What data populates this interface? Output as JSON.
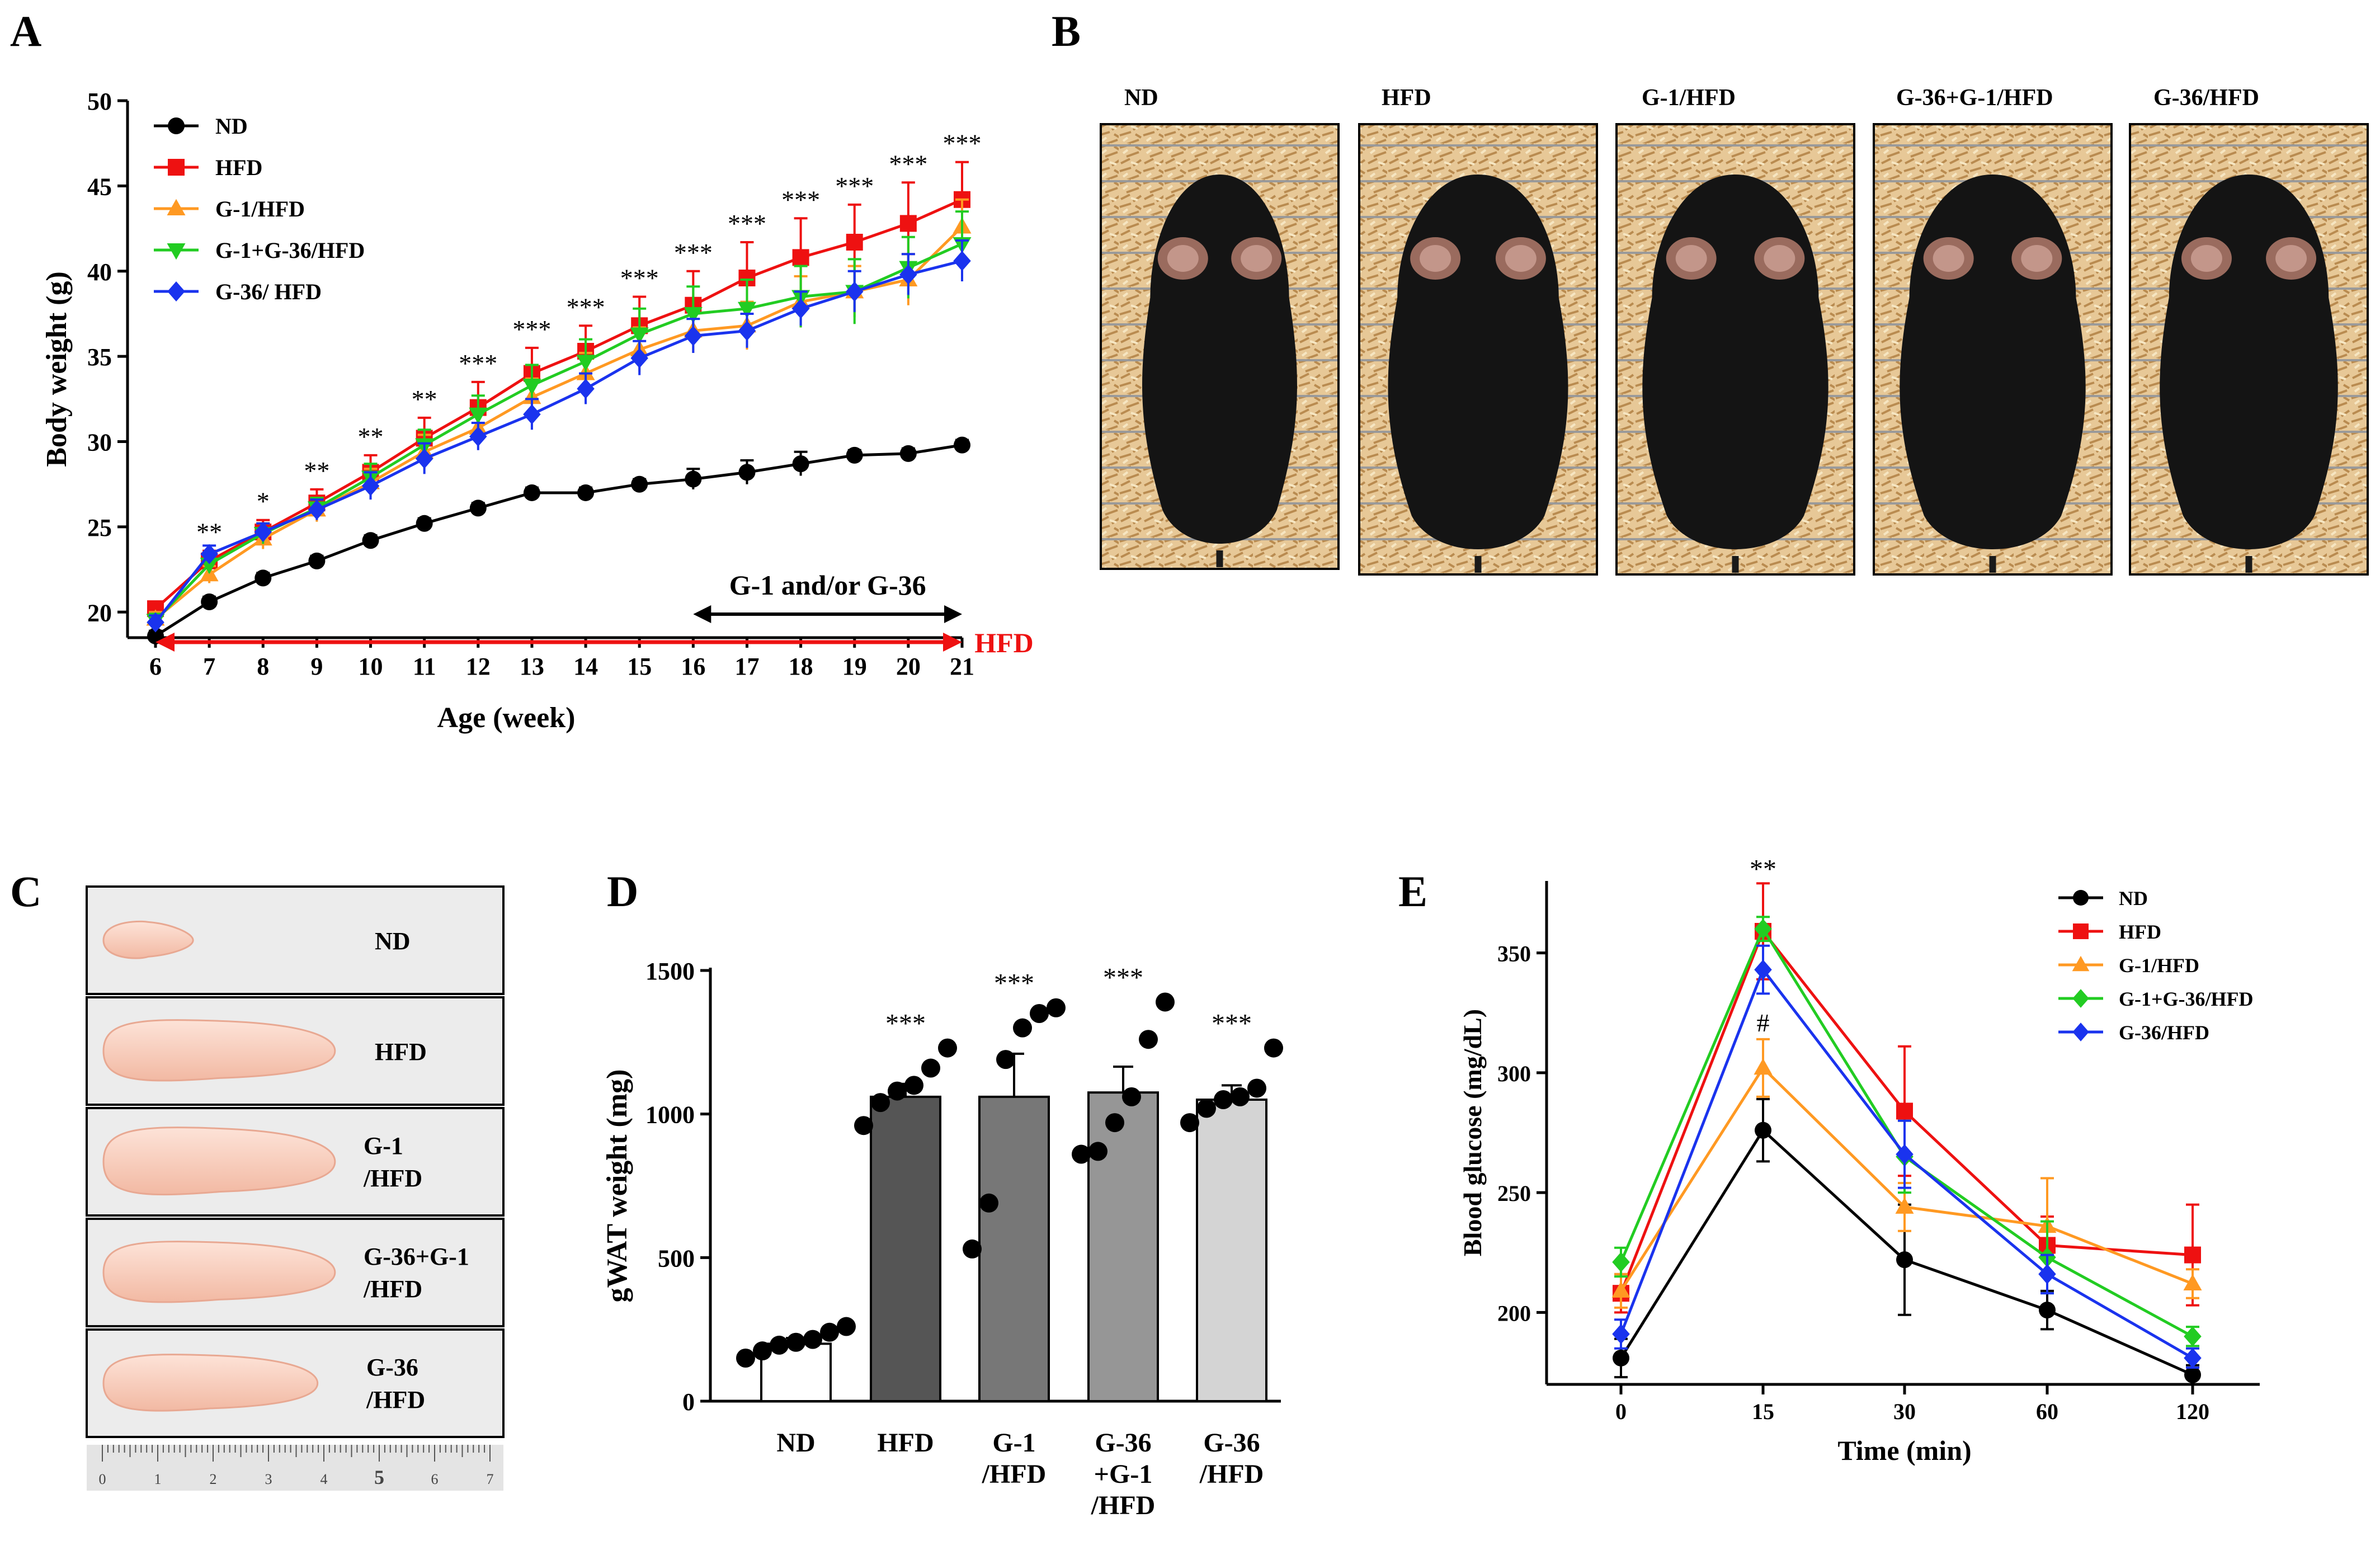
{
  "panels": {
    "A": "A",
    "B": "B",
    "C": "C",
    "D": "D",
    "E": "E"
  },
  "colors": {
    "ND": "#000000",
    "HFD": "#ee1111",
    "G1": "#ff9922",
    "G1G36": "#22cc22",
    "G36": "#1a33ee",
    "barND": "#ffffff",
    "barHFD": "#555555",
    "barG1": "#777777",
    "barG36G1": "#969696",
    "barG36": "#d4d4d4"
  },
  "panelB": {
    "labels": [
      "ND",
      "HFD",
      "G-1/HFD",
      "G-36+G-1/HFD",
      "G-36/HFD"
    ]
  },
  "panelC": {
    "labels": [
      [
        "ND"
      ],
      [
        "HFD"
      ],
      [
        "G-1",
        "/HFD"
      ],
      [
        "G-36+G-1",
        "/HFD"
      ],
      [
        "G-36",
        "/HFD"
      ]
    ],
    "ruler": [
      "0",
      "1",
      "2",
      "3",
      "4",
      "5",
      "6",
      "7"
    ]
  },
  "chart_data": [
    {
      "panel": "A",
      "type": "line",
      "xlabel": "Age (week)",
      "ylabel": "Body weight (g)",
      "xlim": [
        6,
        21
      ],
      "ylim": [
        18.5,
        50
      ],
      "yticks": [
        20,
        25,
        30,
        35,
        40,
        45,
        50
      ],
      "x": [
        6,
        7,
        8,
        9,
        10,
        11,
        12,
        13,
        14,
        15,
        16,
        17,
        18,
        19,
        20,
        21
      ],
      "legend_position": "top-left",
      "series": [
        {
          "name": "ND",
          "color": "#000000",
          "marker": "circle",
          "values": [
            18.6,
            20.6,
            22.0,
            23.0,
            24.2,
            25.2,
            26.1,
            27.0,
            27.0,
            27.5,
            27.8,
            28.2,
            28.7,
            29.2,
            29.3,
            29.8
          ],
          "err": [
            0.3,
            0.3,
            0.3,
            0.3,
            0.3,
            0.3,
            0.3,
            0.3,
            0.3,
            0.3,
            0.6,
            0.7,
            0.7,
            0.3,
            0.3,
            0.3
          ]
        },
        {
          "name": "HFD",
          "color": "#ee1111",
          "marker": "square",
          "values": [
            20.2,
            23.0,
            24.7,
            26.4,
            28.2,
            30.2,
            32.0,
            34.0,
            35.3,
            36.8,
            38.0,
            39.6,
            40.8,
            41.7,
            42.8,
            44.2
          ],
          "err": [
            0.4,
            0.6,
            0.7,
            0.8,
            1.0,
            1.2,
            1.5,
            1.5,
            1.5,
            1.7,
            2.0,
            2.1,
            2.3,
            2.2,
            2.4,
            2.2
          ]
        },
        {
          "name": "G-1/HFD",
          "color": "#ff9922",
          "marker": "triangle-up",
          "values": [
            19.6,
            22.2,
            24.3,
            26.0,
            27.6,
            29.4,
            30.8,
            32.6,
            34.0,
            35.4,
            36.5,
            36.8,
            38.2,
            38.8,
            39.5,
            42.6
          ],
          "err": [
            0.4,
            0.5,
            0.6,
            0.7,
            0.8,
            1.0,
            1.0,
            1.1,
            1.2,
            1.3,
            1.3,
            1.4,
            1.5,
            1.5,
            1.5,
            1.6
          ]
        },
        {
          "name": "G-1+G-36/HFD",
          "color": "#22cc22",
          "marker": "triangle-down",
          "values": [
            19.5,
            22.8,
            24.6,
            26.1,
            27.9,
            29.8,
            31.6,
            33.3,
            34.7,
            36.3,
            37.5,
            37.8,
            38.5,
            38.8,
            40.2,
            41.6
          ],
          "err": [
            0.4,
            0.5,
            0.6,
            0.6,
            0.8,
            0.9,
            1.1,
            1.2,
            1.3,
            1.5,
            1.6,
            1.7,
            1.8,
            1.9,
            1.8,
            1.9
          ]
        },
        {
          "name": "G-36/ HFD",
          "color": "#1a33ee",
          "marker": "diamond",
          "values": [
            19.4,
            23.4,
            24.7,
            26.0,
            27.4,
            29.0,
            30.3,
            31.6,
            33.1,
            34.9,
            36.2,
            36.5,
            37.8,
            38.8,
            39.8,
            40.6
          ],
          "err": [
            0.4,
            0.5,
            0.5,
            0.6,
            0.8,
            0.9,
            0.8,
            0.9,
            0.9,
            1.0,
            1.0,
            1.0,
            1.0,
            1.2,
            1.2,
            1.2
          ]
        }
      ],
      "significance": [
        {
          "x": 7,
          "label": "**"
        },
        {
          "x": 8,
          "label": "*"
        },
        {
          "x": 9,
          "label": "**"
        },
        {
          "x": 10,
          "label": "**"
        },
        {
          "x": 11,
          "label": "**"
        },
        {
          "x": 12,
          "label": "***"
        },
        {
          "x": 13,
          "label": "***"
        },
        {
          "x": 14,
          "label": "***"
        },
        {
          "x": 15,
          "label": "***"
        },
        {
          "x": 16,
          "label": "***"
        },
        {
          "x": 17,
          "label": "***"
        },
        {
          "x": 18,
          "label": "***"
        },
        {
          "x": 19,
          "label": "***"
        },
        {
          "x": 20,
          "label": "***"
        },
        {
          "x": 21,
          "label": "***"
        }
      ],
      "annotations": {
        "treatment": {
          "label": "G-1 and/or G-36",
          "from": 16,
          "to": 21
        },
        "diet": {
          "label": "HFD",
          "from": 6,
          "to": 21
        }
      }
    },
    {
      "panel": "D",
      "type": "bar",
      "ylabel": "gWAT weight (mg)",
      "ylim": [
        0,
        1500
      ],
      "yticks": [
        0,
        500,
        1000,
        1500
      ],
      "categories": [
        [
          "ND"
        ],
        [
          "HFD"
        ],
        [
          "G-1",
          "/HFD"
        ],
        [
          "G-36",
          "+G-1",
          "/HFD"
        ],
        [
          "G-36",
          "/HFD"
        ]
      ],
      "values": [
        200,
        1060,
        1060,
        1075,
        1050
      ],
      "err": [
        20,
        45,
        150,
        90,
        50
      ],
      "points": [
        [
          150,
          175,
          195,
          205,
          215,
          240,
          260
        ],
        [
          960,
          1040,
          1080,
          1100,
          1160,
          1230
        ],
        [
          530,
          690,
          1190,
          1300,
          1350,
          1370
        ],
        [
          860,
          870,
          970,
          1060,
          1260,
          1390
        ],
        [
          970,
          1020,
          1050,
          1060,
          1090,
          1230
        ]
      ],
      "significance": [
        "",
        "***",
        "***",
        "***",
        "***"
      ]
    },
    {
      "panel": "E",
      "type": "line",
      "xlabel": "Time (min)",
      "ylabel": "Blood glucose (mg/dL)",
      "x": [
        0,
        15,
        30,
        60,
        120
      ],
      "xlim": [
        0,
        120
      ],
      "ylim": [
        170,
        380
      ],
      "yticks": [
        200,
        250,
        300,
        350
      ],
      "legend_position": "top-right",
      "series": [
        {
          "name": "ND",
          "color": "#000000",
          "marker": "circle",
          "values": [
            181,
            276,
            222,
            201,
            174
          ],
          "err": [
            8,
            13,
            23,
            8,
            4
          ]
        },
        {
          "name": "HFD",
          "color": "#ee1111",
          "marker": "square",
          "values": [
            208,
            359,
            284,
            228,
            224
          ],
          "err": [
            8,
            20,
            27,
            12,
            21
          ]
        },
        {
          "name": "G-1/HFD",
          "color": "#ff9922",
          "marker": "triangle-up",
          "values": [
            209,
            302,
            244,
            236,
            212
          ],
          "err": [
            7,
            12,
            10,
            20,
            6
          ]
        },
        {
          "name": "G-1+G-36/HFD",
          "color": "#22cc22",
          "marker": "diamond",
          "values": [
            221,
            360,
            265,
            223,
            190
          ],
          "err": [
            6,
            5,
            15,
            15,
            4
          ]
        },
        {
          "name": "G-36/HFD",
          "color": "#1a33ee",
          "marker": "diamond",
          "values": [
            191,
            343,
            266,
            216,
            181
          ],
          "err": [
            6,
            10,
            14,
            8,
            4
          ]
        }
      ],
      "annotations": [
        {
          "x": 15,
          "label": "**",
          "position": "top"
        },
        {
          "x": 15,
          "label": "#",
          "position": "above-G-1/HFD"
        }
      ]
    }
  ]
}
